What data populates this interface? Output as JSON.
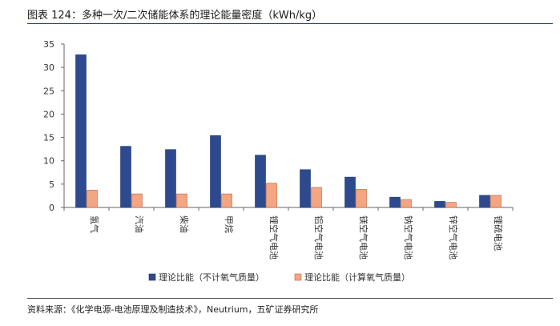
{
  "figure_title": "图表 124：多种一次/二次储能体系的理论能量密度（kWh/kg）",
  "source": "资料来源：《化学电源-电池原理及制造技术》，Neutrium，五矿证券研究所",
  "chart_data": {
    "type": "bar",
    "title": "",
    "xlabel": "",
    "ylabel": "",
    "ylim": [
      0,
      35
    ],
    "yticks": [
      0,
      5,
      10,
      15,
      20,
      25,
      30,
      35
    ],
    "grid": false,
    "legend": "bottom",
    "categories": [
      "氢气",
      "汽油",
      "柴油",
      "甲烷",
      "锂空气电池",
      "铝空气电池",
      "镁空气电池",
      "钠空气电池",
      "锌空气电池",
      "锂硫电池"
    ],
    "series": [
      {
        "name": "理论比能（不计氧气质量）",
        "color": "#2e4a8f",
        "values": [
          32.7,
          13.1,
          12.4,
          15.4,
          11.2,
          8.1,
          6.5,
          2.2,
          1.3,
          2.6
        ]
      },
      {
        "name": "理论比能（计算氧气质量）",
        "color": "#f4a582",
        "values": [
          3.7,
          2.9,
          2.9,
          2.9,
          5.2,
          4.3,
          3.9,
          1.7,
          1.1,
          2.6
        ]
      }
    ]
  }
}
